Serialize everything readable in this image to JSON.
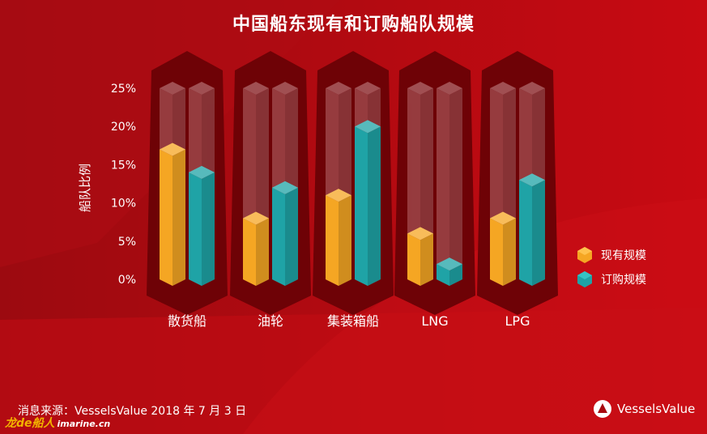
{
  "header": {
    "title": "中国船东现有和订购船队规模"
  },
  "footer": {
    "source": "消息来源：VesselsValue 2018 年 7 月 3 日",
    "logo_text": "VesselsValue",
    "watermark_main": "龙de船人",
    "watermark_sub": "imarine.cn"
  },
  "colors": {
    "background": "#a80a10",
    "series_existing": "#f5a623",
    "series_ordered": "#1fa3a6",
    "ghost_bar": "#b86a6c",
    "hex_panel": "#6e0206"
  },
  "chart_data": {
    "type": "bar",
    "title": "中国船东现有和订购船队规模",
    "xlabel": "",
    "ylabel": "船队比例",
    "categories": [
      "散货船",
      "油轮",
      "集装箱船",
      "LNG",
      "LPG"
    ],
    "series": [
      {
        "name": "现有规模",
        "values": [
          17,
          8,
          11,
          6,
          8
        ]
      },
      {
        "name": "订购规模",
        "values": [
          14,
          12,
          20,
          2,
          13
        ]
      }
    ],
    "ylim": [
      0,
      25
    ],
    "yticks": [
      "0%",
      "5%",
      "10%",
      "15%",
      "20%",
      "25%"
    ],
    "legend_position": "right",
    "grid": false
  }
}
